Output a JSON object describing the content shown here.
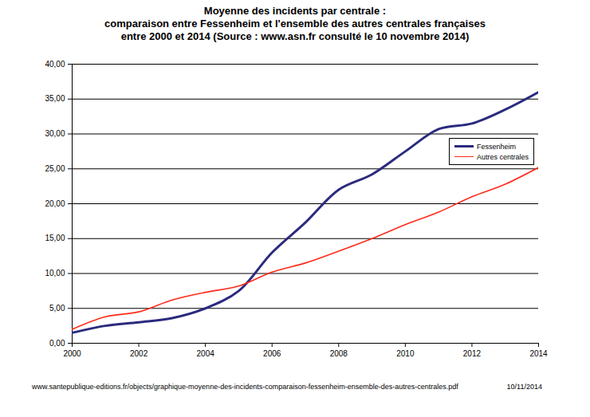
{
  "chart_data": {
    "type": "line",
    "title": "Moyenne des incidents par centrale :",
    "subtitle": [
      "comparaison entre Fessenheim et l'ensemble des autres centrales françaises",
      "entre 2000 et 2014 (Source : www.asn.fr consulté le 10 novembre 2014)"
    ],
    "annotations": [
      "www.santepublique-editions.fr/objects/graphique-moyenne-des-incidents-comparaison-fessenheim-ensemble-des-autres-centrales.pdf",
      "10/11/2014"
    ],
    "x": [
      2000,
      2001,
      2002,
      2003,
      2004,
      2005,
      2006,
      2007,
      2008,
      2009,
      2010,
      2011,
      2012,
      2013,
      2014
    ],
    "series": [
      {
        "name": "Fessenheim",
        "color": "#2b2a7e",
        "values": [
          1.5,
          2.5,
          3.0,
          3.6,
          5.0,
          7.5,
          13.0,
          17.3,
          22.0,
          24.2,
          27.5,
          30.7,
          31.5,
          33.5,
          36.0
        ]
      },
      {
        "name": "Autres centrales",
        "color": "#ff2a1a",
        "values": [
          2.0,
          3.8,
          4.5,
          6.2,
          7.3,
          8.2,
          10.2,
          11.5,
          13.2,
          15.0,
          17.0,
          18.8,
          21.0,
          22.8,
          25.2
        ]
      }
    ],
    "xlim": [
      2000,
      2014
    ],
    "xticks": [
      2000,
      2002,
      2004,
      2006,
      2008,
      2010,
      2012,
      2014
    ],
    "ylim": [
      0,
      40
    ],
    "yticks": [
      {
        "value": 0,
        "label": "0,00"
      },
      {
        "value": 5,
        "label": "5,00"
      },
      {
        "value": 10,
        "label": "10,00"
      },
      {
        "value": 15,
        "label": "15,00"
      },
      {
        "value": 20,
        "label": "20,00"
      },
      {
        "value": 25,
        "label": "25,00"
      },
      {
        "value": 30,
        "label": "30,00"
      },
      {
        "value": 35,
        "label": "35,00"
      },
      {
        "value": 40,
        "label": "40,00"
      }
    ],
    "grid": true,
    "legend": "right"
  }
}
